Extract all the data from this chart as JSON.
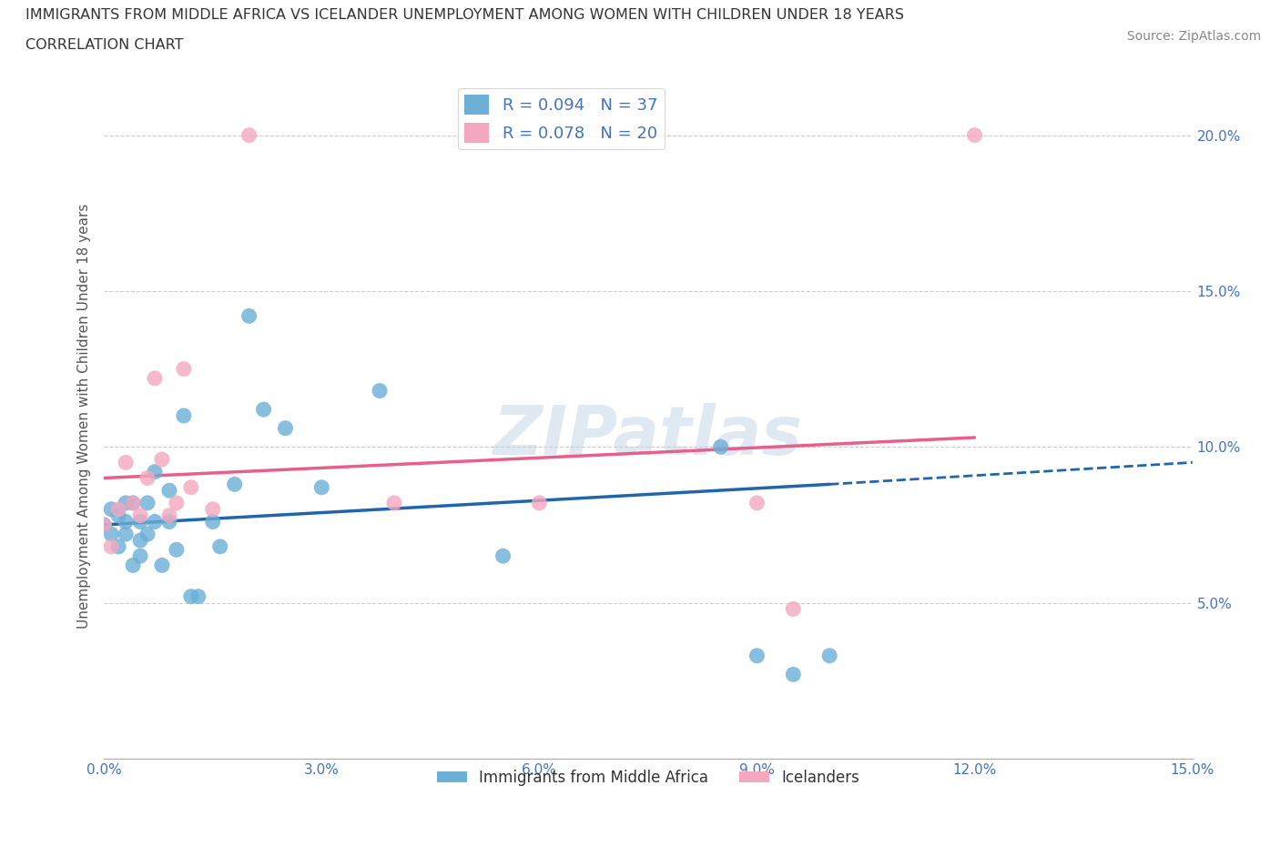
{
  "title_line1": "IMMIGRANTS FROM MIDDLE AFRICA VS ICELANDER UNEMPLOYMENT AMONG WOMEN WITH CHILDREN UNDER 18 YEARS",
  "title_line2": "CORRELATION CHART",
  "source": "Source: ZipAtlas.com",
  "xlabel": "",
  "ylabel": "Unemployment Among Women with Children Under 18 years",
  "watermark": "ZIPatlas",
  "legend_label1": "Immigrants from Middle Africa",
  "legend_label2": "Icelanders",
  "R1": 0.094,
  "N1": 37,
  "R2": 0.078,
  "N2": 20,
  "color_blue": "#6baed6",
  "color_pink": "#f4a8c0",
  "color_blue_line": "#2166ac",
  "color_pink_line": "#e8608a",
  "xlim": [
    0.0,
    0.15
  ],
  "ylim": [
    0.0,
    0.22
  ],
  "xticks": [
    0.0,
    0.03,
    0.06,
    0.09,
    0.12,
    0.15
  ],
  "yticks_right": [
    0.05,
    0.1,
    0.15,
    0.2
  ],
  "blue_x": [
    0.0,
    0.001,
    0.001,
    0.002,
    0.002,
    0.003,
    0.003,
    0.003,
    0.004,
    0.004,
    0.005,
    0.005,
    0.005,
    0.006,
    0.006,
    0.007,
    0.007,
    0.008,
    0.009,
    0.009,
    0.01,
    0.011,
    0.012,
    0.013,
    0.015,
    0.016,
    0.018,
    0.02,
    0.022,
    0.025,
    0.03,
    0.038,
    0.055,
    0.085,
    0.09,
    0.095,
    0.1
  ],
  "blue_y": [
    0.075,
    0.072,
    0.08,
    0.068,
    0.078,
    0.082,
    0.072,
    0.076,
    0.062,
    0.082,
    0.076,
    0.07,
    0.065,
    0.072,
    0.082,
    0.092,
    0.076,
    0.062,
    0.086,
    0.076,
    0.067,
    0.11,
    0.052,
    0.052,
    0.076,
    0.068,
    0.088,
    0.142,
    0.112,
    0.106,
    0.087,
    0.118,
    0.065,
    0.1,
    0.033,
    0.027,
    0.033
  ],
  "pink_x": [
    0.0,
    0.001,
    0.002,
    0.003,
    0.004,
    0.005,
    0.006,
    0.007,
    0.008,
    0.009,
    0.01,
    0.011,
    0.012,
    0.015,
    0.02,
    0.04,
    0.06,
    0.09,
    0.095,
    0.12
  ],
  "pink_y": [
    0.075,
    0.068,
    0.08,
    0.095,
    0.082,
    0.078,
    0.09,
    0.122,
    0.096,
    0.078,
    0.082,
    0.125,
    0.087,
    0.08,
    0.2,
    0.082,
    0.082,
    0.082,
    0.048,
    0.2
  ],
  "blue_trend_x0": 0.0,
  "blue_trend_x_solid_end": 0.1,
  "blue_trend_x_dashed_end": 0.15,
  "blue_trend_y0": 0.075,
  "blue_trend_y_solid_end": 0.088,
  "blue_trend_y_dashed_end": 0.095,
  "pink_trend_x0": 0.0,
  "pink_trend_x_end": 0.12,
  "pink_trend_y0": 0.09,
  "pink_trend_y_end": 0.103
}
